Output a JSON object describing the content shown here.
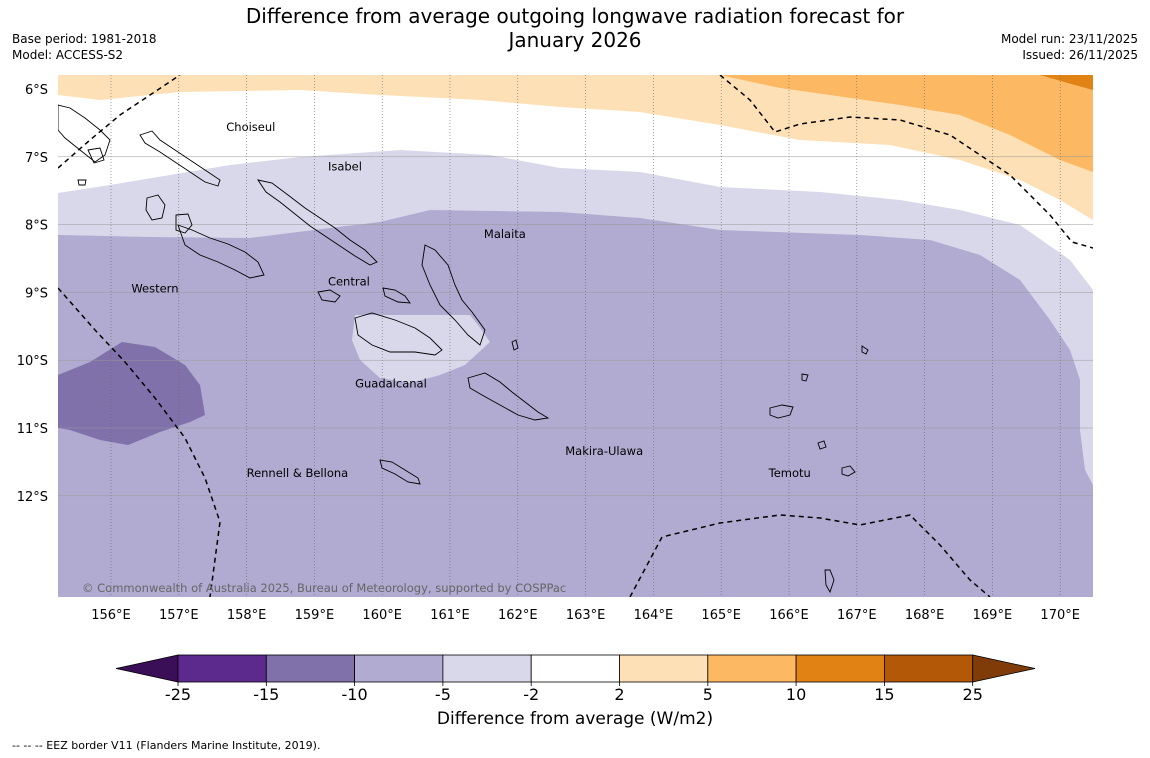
{
  "title_line1": "Difference from average outgoing longwave radiation forecast for",
  "title_line2": "January 2026",
  "base_period": "Base period: 1981-2018",
  "model": "Model: ACCESS-S2",
  "model_run": "Model run: 23/11/2025",
  "issued": "Issued: 26/11/2025",
  "copyright": "© Commonwealth of Australia 2025, Bureau of Meteorology, supported by COSPPac",
  "footnote": "--  --  -- EEZ border V11 (Flanders Marine Institute, 2019).",
  "lon_labels": [
    "156°E",
    "157°E",
    "158°E",
    "159°E",
    "160°E",
    "161°E",
    "162°E",
    "163°E",
    "164°E",
    "165°E",
    "166°E",
    "167°E",
    "168°E",
    "169°E",
    "170°E"
  ],
  "lat_labels": [
    "6°S",
    "7°S",
    "8°S",
    "9°S",
    "10°S",
    "11°S",
    "12°S"
  ],
  "lon_values": [
    156,
    157,
    158,
    159,
    160,
    161,
    162,
    163,
    164,
    165,
    166,
    167,
    168,
    169,
    170
  ],
  "lat_values": [
    -6,
    -7,
    -8,
    -9,
    -10,
    -11,
    -12
  ],
  "region_labels": [
    {
      "name": "Choiseul",
      "lon": 157.7,
      "lat": -6.62
    },
    {
      "name": "Isabel",
      "lon": 159.2,
      "lat": -7.2
    },
    {
      "name": "Malaita",
      "lon": 161.5,
      "lat": -8.2
    },
    {
      "name": "Western",
      "lon": 156.3,
      "lat": -9.0
    },
    {
      "name": "Central",
      "lon": 159.2,
      "lat": -8.9
    },
    {
      "name": "Guadalcanal",
      "lon": 159.6,
      "lat": -10.4
    },
    {
      "name": "Makira-Ulawa",
      "lon": 162.7,
      "lat": -11.4
    },
    {
      "name": "Temotu",
      "lon": 165.7,
      "lat": -11.72
    },
    {
      "name": "Rennell & Bellona",
      "lon": 158.0,
      "lat": -11.72
    }
  ],
  "colorbar": {
    "title": "Difference from average (W/m2)",
    "tick_labels": [
      "-25",
      "-15",
      "-10",
      "-5",
      "-2",
      "2",
      "5",
      "10",
      "15",
      "25"
    ],
    "colors": [
      "#3b0f57",
      "#5b2a8c",
      "#8071aa",
      "#b1aad1",
      "#d8d8ea",
      "#ffffff",
      "#fee0b6",
      "#fdb863",
      "#e08214",
      "#b35806",
      "#7f3b08"
    ]
  },
  "legend_colors": {
    "lt_m15": "#8071aa",
    "m15_m10": "#b1aad1",
    "m10_m5": "#b1aad1",
    "m5_m2": "#d8d8ea",
    "m2_2": "#ffffff",
    "2_5": "#fee0b6",
    "5_10": "#fdb863",
    "10_15": "#e08214",
    "land_outline": "#000000",
    "grid": "#888888"
  }
}
